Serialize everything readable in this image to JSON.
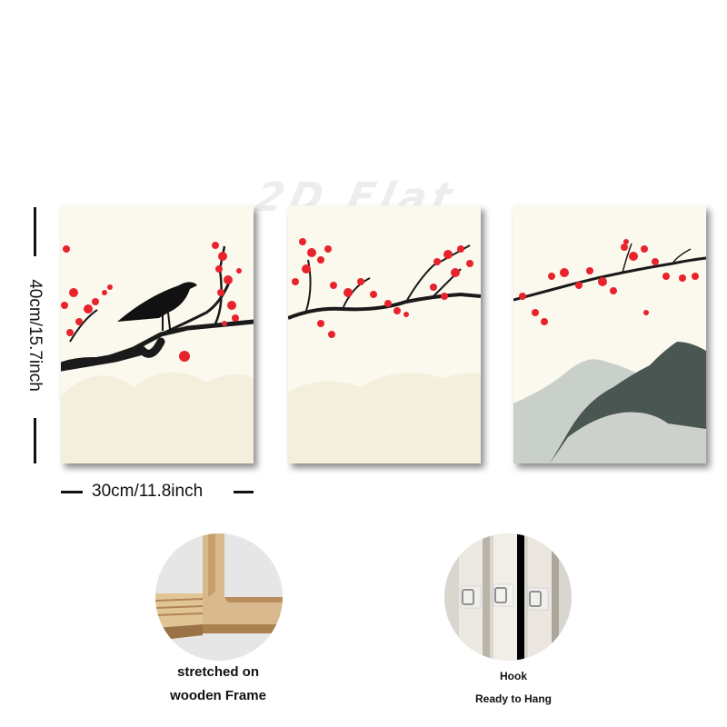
{
  "watermark": {
    "text": "2D Flat"
  },
  "dimensions": {
    "height_label": "40cm/15.7inch",
    "width_label": "30cm/11.8inch"
  },
  "panels": [
    {
      "subject": "crow on plum blossom branch"
    },
    {
      "subject": "plum blossom branch"
    },
    {
      "subject": "plum blossom branch with ink mountains"
    }
  ],
  "features": {
    "frame": {
      "line1": "stretched on",
      "line2": "wooden Frame"
    },
    "hook": {
      "line1": "Hook",
      "line2": "Ready to Hang"
    }
  },
  "colors": {
    "blossom": "#e8232b",
    "branch": "#1a1a1a",
    "canvas": "#fbf8ee",
    "mountain": "#4a5651"
  },
  "icons": [
    "crow-icon",
    "blossom-icon",
    "mountain-icon",
    "wood-frame-icon",
    "hook-icon"
  ]
}
